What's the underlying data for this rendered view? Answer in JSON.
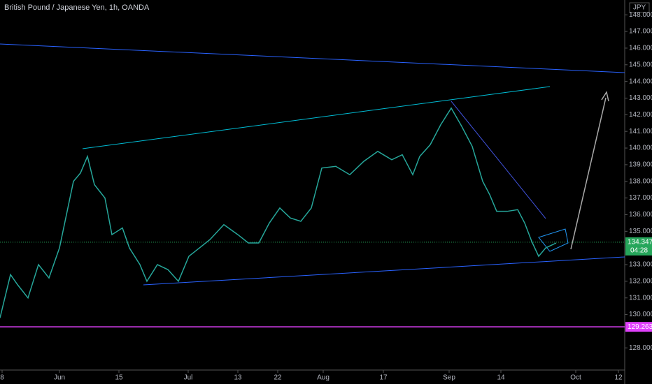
{
  "chart_data": {
    "type": "line",
    "title": "British Pound / Japanese Yen, 1h, OANDA",
    "currency": "JPY",
    "x": [
      0,
      3,
      5,
      8,
      11,
      14,
      17,
      19,
      21,
      23,
      25,
      27,
      30,
      32,
      35,
      37,
      40,
      42,
      45,
      48,
      51,
      54,
      57,
      60,
      64,
      68,
      71,
      74,
      77,
      80,
      83,
      86,
      89,
      92,
      96,
      100,
      104,
      108,
      112,
      115,
      118,
      120,
      123,
      126,
      129,
      132,
      135,
      138,
      140,
      142,
      145,
      148,
      150,
      152,
      154,
      156,
      159
    ],
    "values": [
      129.8,
      132.4,
      131.8,
      131,
      133,
      132.2,
      134,
      136,
      138,
      138.5,
      139.5,
      137.8,
      137,
      134.8,
      135.2,
      134,
      133,
      132,
      133,
      132.7,
      132,
      133.5,
      134,
      134.5,
      135.4,
      134.8,
      134.3,
      134.3,
      135.5,
      136.4,
      135.8,
      135.6,
      136.4,
      138.8,
      138.9,
      138.4,
      139.2,
      139.8,
      139.3,
      139.6,
      138.4,
      139.5,
      140.2,
      141.4,
      142.4,
      141.3,
      140.1,
      138,
      137.2,
      136.2,
      136.2,
      136.3,
      135.5,
      134.4,
      133.5,
      134,
      134.3
    ],
    "color": "#26a69a",
    "current_price": 134.347,
    "countdown": "04:28",
    "support_level": 129.263,
    "xlim": [
      0,
      178.6
    ],
    "xticks": [
      {
        "value": 0.6,
        "label": "8"
      },
      {
        "value": 17,
        "label": "Jun"
      },
      {
        "value": 34,
        "label": "15"
      },
      {
        "value": 53.8,
        "label": "Jul"
      },
      {
        "value": 68,
        "label": "13"
      },
      {
        "value": 79.4,
        "label": "22"
      },
      {
        "value": 92.4,
        "label": "Aug"
      },
      {
        "value": 109.6,
        "label": "17"
      },
      {
        "value": 128.4,
        "label": "Sep"
      },
      {
        "value": 143.2,
        "label": "14"
      },
      {
        "value": 164.6,
        "label": "Oct"
      },
      {
        "value": 176.8,
        "label": "12"
      }
    ],
    "ylim": [
      126.67,
      148.89
    ],
    "yticks": [
      {
        "value": 128,
        "label": "128.000"
      },
      {
        "value": 130,
        "label": "130.000"
      },
      {
        "value": 131,
        "label": "131.000"
      },
      {
        "value": 132,
        "label": "132.000"
      },
      {
        "value": 133,
        "label": "133.000"
      },
      {
        "value": 135,
        "label": "135.000"
      },
      {
        "value": 136,
        "label": "136.000"
      },
      {
        "value": 137,
        "label": "137.000"
      },
      {
        "value": 138,
        "label": "138.000"
      },
      {
        "value": 139,
        "label": "139.000"
      },
      {
        "value": 140,
        "label": "140.000"
      },
      {
        "value": 141,
        "label": "141.000"
      },
      {
        "value": 142,
        "label": "142.000"
      },
      {
        "value": 143,
        "label": "143.000"
      },
      {
        "value": 144,
        "label": "144.000"
      },
      {
        "value": 145,
        "label": "145.000"
      },
      {
        "value": 146,
        "label": "146.000"
      },
      {
        "value": 147,
        "label": "147.000"
      },
      {
        "value": 148,
        "label": "148.000"
      }
    ]
  }
}
